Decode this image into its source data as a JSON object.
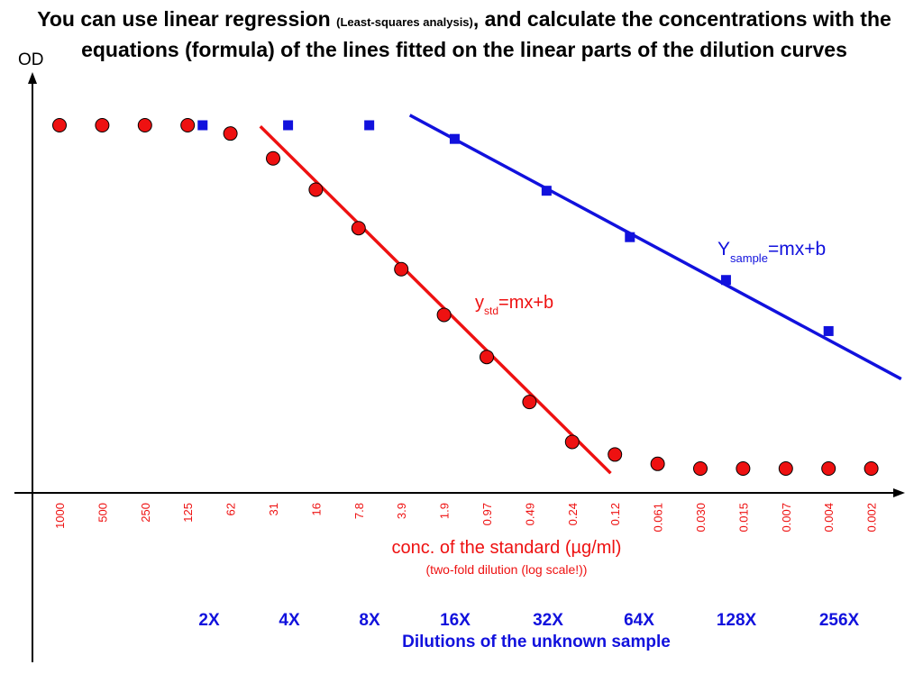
{
  "title": {
    "part1": "You can use linear regression ",
    "part_small": "(Least-squares analysis)",
    "part2": ", and calculate the concentrations with the equations (formula) of the lines fitted on the linear parts of the dilution curves"
  },
  "colors": {
    "standard": "#ee1111",
    "sample": "#1111dd",
    "axis": "#000000"
  },
  "chart_data": {
    "type": "scatter",
    "ylabel": "OD",
    "x_axis_type": "categorical, two-fold dilution (log scale)",
    "categories": [
      "1000",
      "500",
      "250",
      "125",
      "62",
      "31",
      "16",
      "7.8",
      "3.9",
      "1.9",
      "0.97",
      "0.49",
      "0.24",
      "0.12",
      "0.061",
      "0.030",
      "0.015",
      "0.007",
      "0.004",
      "0.002"
    ],
    "xlabel": "conc. of the standard (µg/ml)",
    "xlabel_note": "(two-fold dilution (log scale!))",
    "series": [
      {
        "key": "standard",
        "marker": "circle",
        "color": "#ee1111",
        "label_main": "y",
        "label_sub": "std",
        "label_rest": "=mx+b",
        "points": [
          [
            0,
            0.954
          ],
          [
            1,
            0.954
          ],
          [
            2,
            0.954
          ],
          [
            3,
            0.954
          ],
          [
            4,
            0.931
          ],
          [
            5,
            0.862
          ],
          [
            6,
            0.775
          ],
          [
            7,
            0.668
          ],
          [
            8,
            0.554
          ],
          [
            9,
            0.427
          ],
          [
            10,
            0.31
          ],
          [
            11,
            0.185
          ],
          [
            12,
            0.074
          ],
          [
            13,
            0.039
          ],
          [
            14,
            0.013
          ],
          [
            15,
            0.0
          ],
          [
            16,
            0.0
          ],
          [
            17,
            0.0
          ],
          [
            18,
            0.0
          ],
          [
            19,
            0.0
          ]
        ],
        "fit_line": [
          [
            4.7,
            0.951
          ],
          [
            12.9,
            -0.013
          ]
        ]
      },
      {
        "key": "sample",
        "marker": "square",
        "color": "#1111dd",
        "label_main": "Y",
        "label_sub": "sample",
        "label_rest": "=mx+b",
        "points": [
          [
            3.35,
            0.954
          ],
          [
            5.35,
            0.954
          ],
          [
            7.25,
            0.954
          ],
          [
            9.25,
            0.916
          ],
          [
            11.4,
            0.772
          ],
          [
            13.35,
            0.643
          ],
          [
            15.6,
            0.524
          ],
          [
            18.0,
            0.382
          ]
        ],
        "fit_line": [
          [
            8.2,
            0.982
          ],
          [
            19.7,
            0.249
          ]
        ]
      }
    ],
    "dilution_labels": [
      "2X",
      "4X",
      "8X",
      "16X",
      "32X",
      "64X",
      "128X",
      "256X"
    ],
    "dilution_caption": "Dilutions of the unknown sample",
    "grid": false
  }
}
